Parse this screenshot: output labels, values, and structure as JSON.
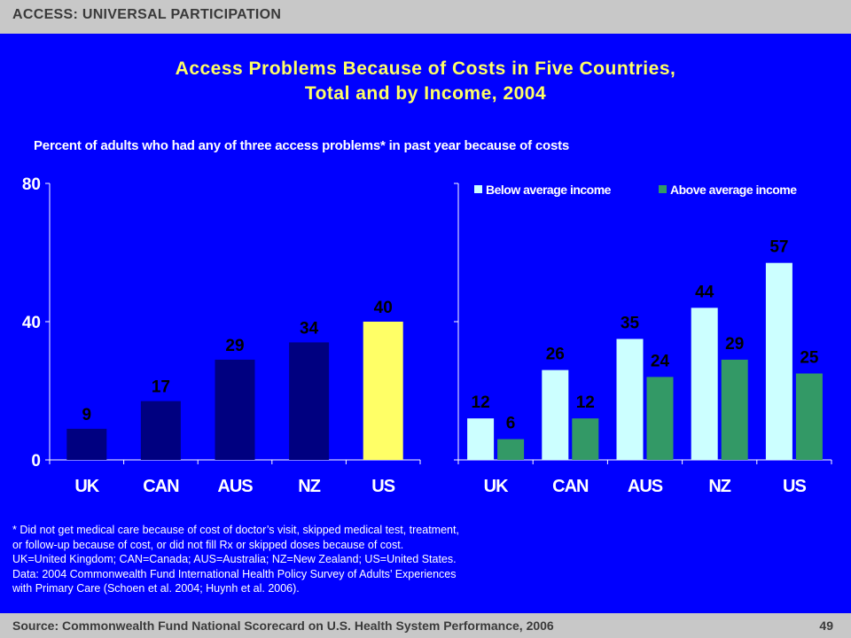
{
  "header": {
    "section": "ACCESS: UNIVERSAL PARTICIPATION"
  },
  "title_line1": "Access Problems Because of Costs in Five Countries,",
  "title_line2": "Total and by Income, 2004",
  "subtitle": "Percent of adults who had any of three access problems* in past year because of costs",
  "footnote": {
    "lines": [
      "* Did not get medical care because of cost of doctor’s visit, skipped medical test, treatment,",
      "or follow-up because of cost, or did not fill Rx or skipped doses because of cost.",
      "UK=United Kingdom; CAN=Canada; AUS=Australia; NZ=New Zealand; US=United States.",
      "Data: 2004 Commonwealth Fund International Health Policy Survey of Adults’ Experiences",
      "with Primary Care (Schoen et al. 2004; Huynh et al. 2006)."
    ]
  },
  "footer": {
    "source": "Source: Commonwealth Fund National Scorecard on U.S. Health System Performance, 2006",
    "page": "49"
  },
  "colors": {
    "background": "#0000ff",
    "total_bar": "#000080",
    "us_highlight": "#ffff66",
    "below_average": "#ccffff",
    "above_average": "#339966",
    "title": "#ffff66"
  },
  "chart_data": [
    {
      "type": "bar",
      "categories": [
        "UK",
        "CAN",
        "AUS",
        "NZ",
        "US"
      ],
      "values": [
        9,
        17,
        29,
        34,
        40
      ],
      "highlight_category": "US",
      "ylim": [
        0,
        80
      ],
      "yticks": [
        0,
        40,
        80
      ],
      "xlabel": "",
      "ylabel": ""
    },
    {
      "type": "bar",
      "categories": [
        "UK",
        "CAN",
        "AUS",
        "NZ",
        "US"
      ],
      "series": [
        {
          "name": "Below average income",
          "values": [
            12,
            26,
            35,
            44,
            57
          ]
        },
        {
          "name": "Above average income",
          "values": [
            6,
            12,
            24,
            29,
            25
          ]
        }
      ],
      "ylim": [
        0,
        80
      ],
      "legend": "top-right",
      "xlabel": "",
      "ylabel": ""
    }
  ]
}
